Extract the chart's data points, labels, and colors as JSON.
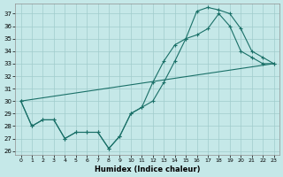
{
  "xlabel": "Humidex (Indice chaleur)",
  "bg_color": "#c5e8e8",
  "grid_color": "#a0cccc",
  "line_color": "#1a7068",
  "xlim": [
    -0.5,
    23.5
  ],
  "ylim": [
    25.7,
    37.8
  ],
  "yticks": [
    26,
    27,
    28,
    29,
    30,
    31,
    32,
    33,
    34,
    35,
    36,
    37
  ],
  "xticks": [
    0,
    1,
    2,
    3,
    4,
    5,
    6,
    7,
    8,
    9,
    10,
    11,
    12,
    13,
    14,
    15,
    16,
    17,
    18,
    19,
    20,
    21,
    22,
    23
  ],
  "line1_x": [
    0,
    1,
    2,
    3,
    4,
    5,
    6,
    7,
    8,
    9,
    10,
    11,
    12,
    13,
    14,
    15,
    16,
    17,
    18,
    19,
    20,
    21,
    22,
    23
  ],
  "line1_y": [
    30.0,
    28.0,
    28.5,
    28.5,
    27.0,
    27.5,
    27.5,
    27.5,
    26.2,
    27.2,
    29.0,
    29.5,
    30.0,
    31.5,
    33.2,
    35.0,
    37.2,
    37.5,
    37.3,
    37.0,
    35.8,
    34.0,
    33.5,
    33.0
  ],
  "line2_x": [
    0,
    1,
    2,
    3,
    4,
    5,
    6,
    7,
    8,
    9,
    10,
    11,
    12,
    13,
    14,
    15,
    16,
    17,
    18,
    19,
    20,
    21,
    22,
    23
  ],
  "line2_y": [
    30.0,
    28.0,
    28.5,
    28.5,
    27.0,
    27.5,
    27.5,
    27.5,
    26.2,
    27.2,
    29.0,
    29.5,
    31.5,
    33.2,
    34.5,
    35.0,
    35.3,
    35.8,
    37.0,
    36.0,
    34.0,
    33.5,
    33.0,
    33.0
  ],
  "line3_x": [
    0,
    23
  ],
  "line3_y": [
    30.0,
    33.0
  ]
}
